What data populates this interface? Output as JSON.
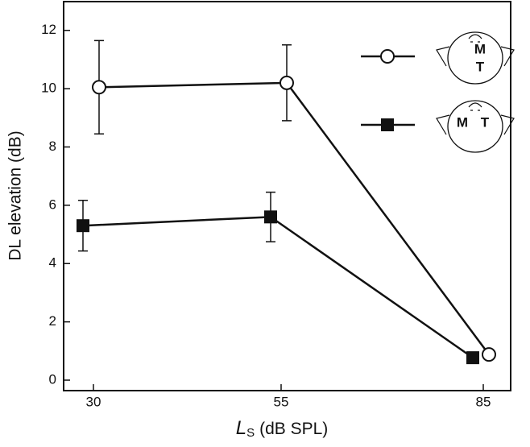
{
  "chart_data": {
    "type": "line",
    "ylabel": "DL elevation (dB)",
    "xlabel": {
      "main": "L",
      "sub": "S",
      "rest": "(dB SPL)"
    },
    "categories": [
      "30",
      "55",
      "85"
    ],
    "ylim": [
      0,
      12.6
    ],
    "yticks": [
      0,
      2,
      4,
      6,
      8,
      10,
      12
    ],
    "series": [
      {
        "marker": "circle",
        "color": "#111111",
        "icon_labels": [
          "M",
          "T"
        ],
        "values": [
          10.05,
          10.2,
          0.88
        ],
        "errors": [
          1.6,
          1.3,
          0.15
        ]
      },
      {
        "marker": "square",
        "color": "#111111",
        "icon_labels": [
          "M",
          "T"
        ],
        "values": [
          5.3,
          5.6,
          0.77
        ],
        "errors": [
          0.87,
          0.85,
          0
        ]
      }
    ]
  }
}
